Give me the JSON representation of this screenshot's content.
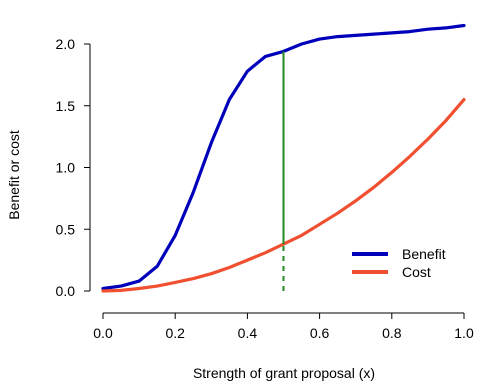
{
  "chart_data": {
    "type": "line",
    "title": "",
    "xlabel": "Strength of grant proposal (x)",
    "ylabel": "Benefit or cost",
    "xlim": [
      0,
      1
    ],
    "ylim": [
      0,
      2.2
    ],
    "x_ticks": [
      0.0,
      0.2,
      0.4,
      0.6,
      0.8,
      1.0
    ],
    "x_tick_labels": [
      "0.0",
      "0.2",
      "0.4",
      "0.6",
      "0.8",
      "1.0"
    ],
    "y_ticks": [
      0.0,
      0.5,
      1.0,
      1.5,
      2.0
    ],
    "y_tick_labels": [
      "0.0",
      "0.5",
      "1.0",
      "1.5",
      "2.0"
    ],
    "grid": false,
    "legend_position": "bottom-right",
    "series": [
      {
        "name": "Benefit",
        "color": "#0000bb",
        "x": [
          0.0,
          0.05,
          0.1,
          0.15,
          0.2,
          0.25,
          0.3,
          0.35,
          0.4,
          0.45,
          0.5,
          0.55,
          0.6,
          0.65,
          0.7,
          0.75,
          0.8,
          0.85,
          0.9,
          0.95,
          1.0
        ],
        "y": [
          0.02,
          0.04,
          0.08,
          0.2,
          0.45,
          0.8,
          1.2,
          1.55,
          1.78,
          1.9,
          1.94,
          2.0,
          2.04,
          2.06,
          2.07,
          2.08,
          2.09,
          2.1,
          2.12,
          2.13,
          2.15
        ]
      },
      {
        "name": "Cost",
        "color": "#f05030",
        "x": [
          0.0,
          0.05,
          0.1,
          0.15,
          0.2,
          0.25,
          0.3,
          0.35,
          0.4,
          0.45,
          0.5,
          0.55,
          0.6,
          0.65,
          0.7,
          0.75,
          0.8,
          0.85,
          0.9,
          0.95,
          1.0
        ],
        "y": [
          0.0,
          0.005,
          0.02,
          0.04,
          0.07,
          0.1,
          0.14,
          0.19,
          0.25,
          0.31,
          0.38,
          0.45,
          0.54,
          0.63,
          0.73,
          0.84,
          0.96,
          1.09,
          1.23,
          1.38,
          1.55
        ]
      }
    ],
    "marker_line": {
      "x": 0.5,
      "cost_value": 0.38,
      "benefit_value": 1.94,
      "color": "#228b22"
    }
  }
}
